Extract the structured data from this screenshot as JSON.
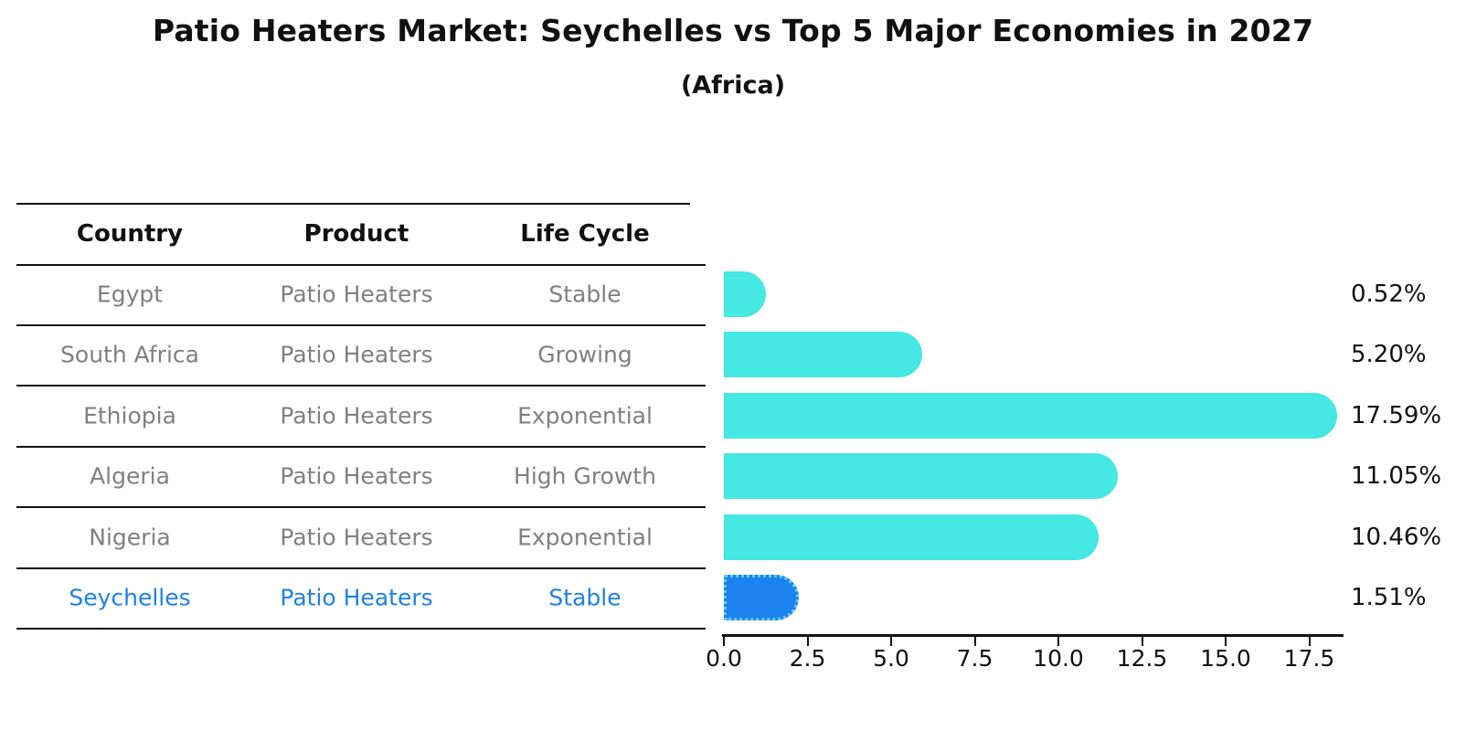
{
  "header": {
    "title": "Patio Heaters Market: Seychelles vs Top 5 Major Economies in 2027",
    "subtitle": "(Africa)"
  },
  "table": {
    "columns": [
      "Country",
      "Product",
      "Life Cycle"
    ],
    "rows": [
      {
        "country": "Egypt",
        "product": "Patio Heaters",
        "life_cycle": "Stable",
        "highlight": false
      },
      {
        "country": "South Africa",
        "product": "Patio Heaters",
        "life_cycle": "Growing",
        "highlight": false
      },
      {
        "country": "Ethiopia",
        "product": "Patio Heaters",
        "life_cycle": "Exponential",
        "highlight": false
      },
      {
        "country": "Algeria",
        "product": "Patio Heaters",
        "life_cycle": "High Growth",
        "highlight": false
      },
      {
        "country": "Nigeria",
        "product": "Patio Heaters",
        "life_cycle": "Exponential",
        "highlight": false
      },
      {
        "country": "Seychelles",
        "product": "Patio Heaters",
        "life_cycle": "Stable",
        "highlight": true
      }
    ]
  },
  "chart_data": {
    "type": "bar",
    "orientation": "horizontal",
    "title": "Patio Heaters Market: Seychelles vs Top 5 Major Economies in 2027 (Africa)",
    "categories": [
      "Egypt",
      "South Africa",
      "Ethiopia",
      "Algeria",
      "Nigeria",
      "Seychelles"
    ],
    "values": [
      0.52,
      5.2,
      17.59,
      11.05,
      10.46,
      1.51
    ],
    "value_labels": [
      "0.52%",
      "5.20%",
      "17.59%",
      "11.05%",
      "10.46%",
      "1.51%"
    ],
    "x_ticks": [
      "0.0",
      "2.5",
      "5.0",
      "7.5",
      "10.0",
      "12.5",
      "15.0",
      "17.5"
    ],
    "xlim": [
      0,
      18.5
    ],
    "xlabel": "",
    "ylabel": "",
    "grid": false,
    "legend": false,
    "highlight_index": 5
  },
  "colors": {
    "bar": "#45E8E2",
    "highlight_bar": "#1B82EE",
    "highlight_border": "#66CCF6",
    "highlight_text": "#1F80E8",
    "row_text": "#808080",
    "header_text": "#111111",
    "axis": "#111111"
  }
}
